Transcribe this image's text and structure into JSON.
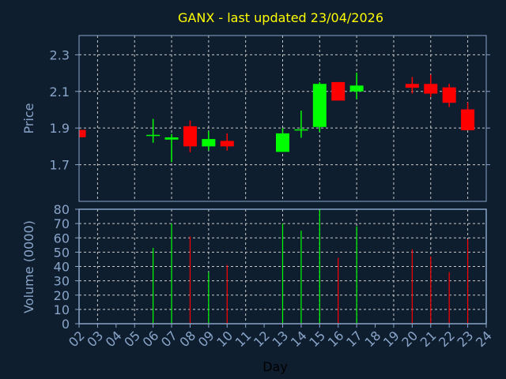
{
  "chart_data": [
    {
      "type": "candlestick",
      "title": "GANX - last updated 23/04/2026",
      "ylabel": "Price",
      "ylim": [
        1.5,
        2.405
      ],
      "yticks": [
        "1.7",
        "1.9",
        "2.1",
        "2.3"
      ],
      "grid": true,
      "colors": {
        "up": "#00ff00",
        "down": "#ff0000",
        "background": "#0f1e2f",
        "axis": "#88a4c8",
        "grid": "#c8c8c8"
      },
      "candles": [
        {
          "day": "02",
          "open": 1.89,
          "high": 1.89,
          "low": 1.85,
          "close": 1.85
        },
        {
          "day": "06",
          "open": 1.86,
          "high": 1.95,
          "low": 1.82,
          "close": 1.863
        },
        {
          "day": "07",
          "open": 1.837,
          "high": 1.868,
          "low": 1.714,
          "close": 1.849
        },
        {
          "day": "08",
          "open": 1.91,
          "high": 1.941,
          "low": 1.768,
          "close": 1.8
        },
        {
          "day": "09",
          "open": 1.8,
          "high": 1.883,
          "low": 1.777,
          "close": 1.84
        },
        {
          "day": "10",
          "open": 1.83,
          "high": 1.871,
          "low": 1.777,
          "close": 1.8
        },
        {
          "day": "13",
          "open": 1.77,
          "high": 1.9,
          "low": 1.77,
          "close": 1.871
        },
        {
          "day": "14",
          "open": 1.888,
          "high": 1.995,
          "low": 1.847,
          "close": 1.893
        },
        {
          "day": "15",
          "open": 1.906,
          "high": 2.151,
          "low": 1.879,
          "close": 2.141
        },
        {
          "day": "16",
          "open": 2.151,
          "high": 2.151,
          "low": 2.05,
          "close": 2.05
        },
        {
          "day": "17",
          "open": 2.1,
          "high": 2.202,
          "low": 2.057,
          "close": 2.132
        },
        {
          "day": "20",
          "open": 2.141,
          "high": 2.179,
          "low": 2.088,
          "close": 2.12
        },
        {
          "day": "21",
          "open": 2.141,
          "high": 2.191,
          "low": 2.069,
          "close": 2.088
        },
        {
          "day": "22",
          "open": 2.122,
          "high": 2.141,
          "low": 2.015,
          "close": 2.038
        },
        {
          "day": "23",
          "open": 2.002,
          "high": 2.04,
          "low": 1.888,
          "close": 1.888
        }
      ]
    },
    {
      "type": "bar",
      "ylabel": "Volume (0000)",
      "xlabel": "Day",
      "ylim": [
        0,
        80
      ],
      "yticks": [
        "0",
        "10",
        "20",
        "30",
        "40",
        "50",
        "60",
        "70",
        "80"
      ],
      "xticks": [
        "02",
        "03",
        "04",
        "05",
        "06",
        "07",
        "08",
        "09",
        "10",
        "11",
        "12",
        "13",
        "14",
        "15",
        "16",
        "17",
        "18",
        "19",
        "20",
        "21",
        "22",
        "23",
        "24"
      ],
      "grid": true,
      "bars": [
        {
          "day": "06",
          "value": 53,
          "direction": "up"
        },
        {
          "day": "07",
          "value": 70,
          "direction": "up"
        },
        {
          "day": "08",
          "value": 61,
          "direction": "down"
        },
        {
          "day": "09",
          "value": 36,
          "direction": "up"
        },
        {
          "day": "10",
          "value": 41,
          "direction": "down"
        },
        {
          "day": "13",
          "value": 70,
          "direction": "up"
        },
        {
          "day": "14",
          "value": 65,
          "direction": "up"
        },
        {
          "day": "15",
          "value": 80,
          "direction": "up"
        },
        {
          "day": "16",
          "value": 46,
          "direction": "down"
        },
        {
          "day": "17",
          "value": 68,
          "direction": "up"
        },
        {
          "day": "20",
          "value": 52,
          "direction": "down"
        },
        {
          "day": "21",
          "value": 47,
          "direction": "down"
        },
        {
          "day": "22",
          "value": 36,
          "direction": "down"
        },
        {
          "day": "23",
          "value": 59,
          "direction": "down"
        }
      ]
    }
  ]
}
